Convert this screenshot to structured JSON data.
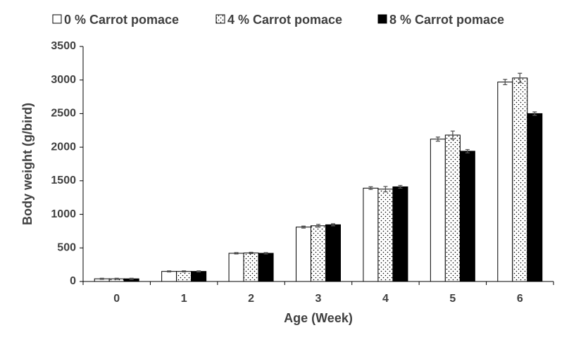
{
  "chart_data": {
    "type": "bar",
    "x_label": "Age (Week)",
    "y_label": "Body weight (g/bird)",
    "categories": [
      "0",
      "1",
      "2",
      "3",
      "4",
      "5",
      "6"
    ],
    "series": [
      {
        "name": "0 % Carrot pomace",
        "color": "#ffffff",
        "values": [
          40,
          150,
          420,
          810,
          1390,
          2120,
          2970
        ],
        "errors": [
          8,
          8,
          10,
          15,
          20,
          30,
          40
        ]
      },
      {
        "name": "4 % Carrot pomace",
        "color": "#ffffff",
        "pattern": "dots",
        "values": [
          40,
          150,
          425,
          830,
          1375,
          2180,
          3030
        ],
        "errors": [
          8,
          8,
          10,
          20,
          40,
          60,
          70
        ]
      },
      {
        "name": "8 % Carrot pomace",
        "color": "#000000",
        "values": [
          40,
          150,
          420,
          845,
          1410,
          1940,
          2500
        ],
        "errors": [
          8,
          8,
          10,
          15,
          20,
          25,
          25
        ]
      }
    ],
    "ylim": [
      0,
      3500
    ],
    "yticks": [
      0,
      500,
      1000,
      1500,
      2000,
      2500,
      3000,
      3500
    ],
    "legend": "top",
    "grid": false
  }
}
